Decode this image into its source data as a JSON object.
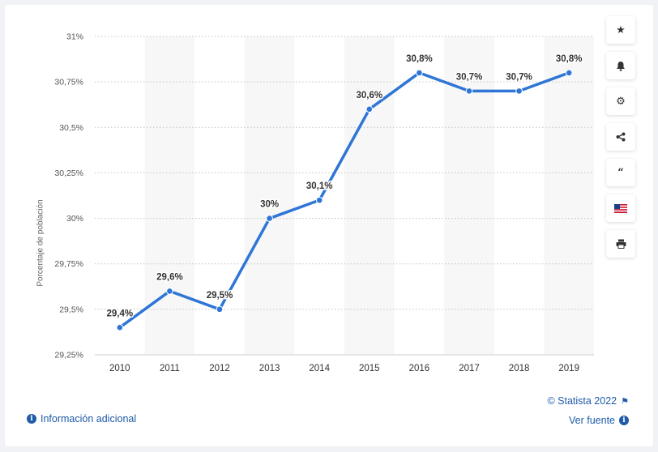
{
  "chart_data": {
    "type": "line",
    "x": [
      "2010",
      "2011",
      "2012",
      "2013",
      "2014",
      "2015",
      "2016",
      "2017",
      "2018",
      "2019"
    ],
    "series": [
      {
        "values": [
          29.4,
          29.6,
          29.5,
          30.0,
          30.1,
          30.6,
          30.8,
          30.7,
          30.7,
          30.8
        ],
        "labels": [
          "29,4%",
          "29,6%",
          "29,5%",
          "30%",
          "30,1%",
          "30,6%",
          "30,8%",
          "30,7%",
          "30,7%",
          "30,8%"
        ]
      }
    ],
    "ylabel": "Porcentaje de población",
    "ylim": [
      29.25,
      31
    ],
    "yticks": [
      29.25,
      29.5,
      29.75,
      30,
      30.25,
      30.5,
      30.75,
      31
    ],
    "ytick_labels": [
      "29,25%",
      "29,5%",
      "29,75%",
      "30%",
      "30,25%",
      "30,5%",
      "30,75%",
      "31%"
    ],
    "grid": true,
    "line_color": "#2e75d6"
  },
  "footer": {
    "info_label": "Información adicional",
    "copyright": "© Statista 2022",
    "source_label": "Ver fuente"
  },
  "toolbar": {
    "icons": [
      "star-icon",
      "bell-icon",
      "gear-icon",
      "share-icon",
      "quote-icon",
      "flag-icon",
      "print-icon"
    ]
  }
}
